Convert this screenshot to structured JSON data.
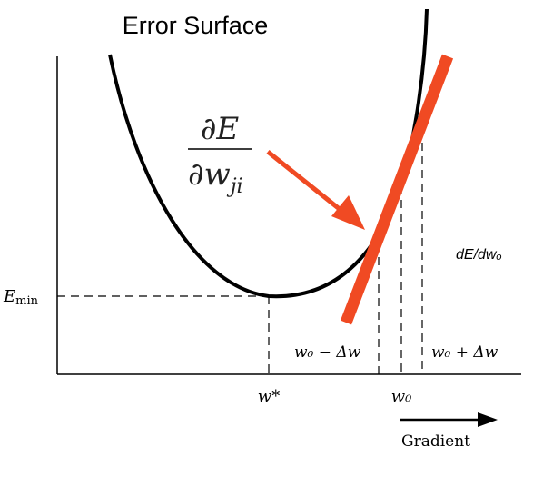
{
  "title": "Error Surface",
  "partial_derivative": {
    "numerator": "∂E",
    "denominator_base": "∂w",
    "denominator_subscript": "ji"
  },
  "slope_label": "dE/dwₒ",
  "y_axis_labels": {
    "e_min_base": "E",
    "e_min_subscript": "min"
  },
  "x_axis_labels": {
    "w_star": "w*",
    "w0": "w₀",
    "w0_minus": "w₀ − Δw",
    "w0_plus": "w₀ + Δw"
  },
  "gradient_label": "Gradient",
  "colors": {
    "curve": "#000000",
    "tangent": "#f04a23",
    "arrow": "#f04a23",
    "axis": "#000000",
    "dashes": "#000000"
  }
}
